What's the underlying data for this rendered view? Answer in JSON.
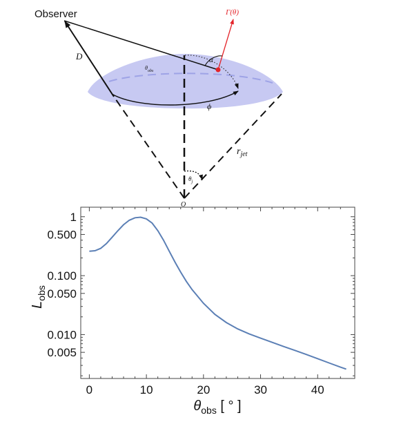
{
  "diagram": {
    "observer_label": "Observer",
    "distance_label": "D",
    "lorentz_label": "Γ(θ)",
    "alpha_label": "α",
    "theta_obs_label": "θobs",
    "phi_label": "ϕ",
    "r_jet_label": "rjet",
    "theta_j_label": "θj",
    "origin_label": "O",
    "colors": {
      "cap_fill": "#c7c9f2",
      "cap_dash": "#9ea3e6",
      "lorentz_vector": "#e4252b",
      "lines": "#111111"
    }
  },
  "chart_data": {
    "type": "line",
    "title": "",
    "xlabel": "θobs [ ° ]",
    "ylabel": "Lobs",
    "xscale": "linear",
    "yscale": "log",
    "xlim": [
      -1.5,
      46.5
    ],
    "ylim": [
      0.0018,
      1.45
    ],
    "x_ticks": [
      0,
      10,
      20,
      30,
      40
    ],
    "y_ticks": [
      0.005,
      0.01,
      0.05,
      0.1,
      0.5,
      1
    ],
    "y_tick_labels": [
      "0.005",
      "0.010",
      "0.050",
      "0.100",
      "0.500",
      "1"
    ],
    "series_color": "#5b7fb5",
    "grid": false,
    "series": [
      {
        "x": [
          0,
          1,
          2,
          3,
          4,
          5,
          6,
          7,
          8,
          9,
          10,
          11,
          12,
          13,
          14,
          15,
          16,
          17,
          18,
          20,
          22,
          24,
          26,
          28,
          30,
          32,
          34,
          36,
          38,
          40,
          42,
          44,
          45
        ],
        "y": [
          0.26,
          0.265,
          0.29,
          0.35,
          0.45,
          0.58,
          0.73,
          0.87,
          0.96,
          0.98,
          0.92,
          0.78,
          0.58,
          0.4,
          0.26,
          0.17,
          0.115,
          0.08,
          0.058,
          0.034,
          0.022,
          0.016,
          0.0125,
          0.0103,
          0.0087,
          0.0074,
          0.0063,
          0.0054,
          0.0046,
          0.0039,
          0.0033,
          0.0028,
          0.0026
        ]
      }
    ]
  }
}
